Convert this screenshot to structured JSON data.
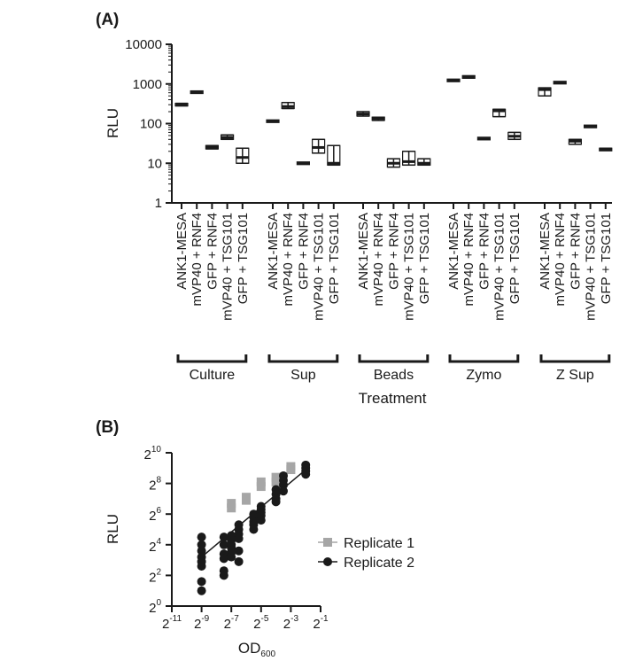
{
  "chart_data": [
    {
      "panel": "(A)",
      "type": "box",
      "ylabel": "RLU",
      "xlabel": "Treatment",
      "yscale": "log10",
      "ylim": [
        1,
        10000
      ],
      "yticks": [
        "1",
        "10",
        "100",
        "1000",
        "10000"
      ],
      "ytick_values": [
        1,
        10,
        100,
        1000,
        10000
      ],
      "categories": [
        "ANK1-MESA",
        "mVP40 + RNF4",
        "GFP + RNF4",
        "mVP40 + TSG101",
        "GFP + TSG101"
      ],
      "groups": [
        {
          "name": "Culture",
          "boxes": [
            {
              "med": 300,
              "lo": 280,
              "hi": 325
            },
            {
              "med": 620,
              "lo": 590,
              "hi": 650
            },
            {
              "med": 25,
              "lo": 23,
              "hi": 28
            },
            {
              "med": 45,
              "lo": 40,
              "hi": 52
            },
            {
              "med": 14,
              "lo": 10,
              "hi": 24
            }
          ]
        },
        {
          "name": "Sup",
          "boxes": [
            {
              "med": 115,
              "lo": 110,
              "hi": 120
            },
            {
              "med": 270,
              "lo": 240,
              "hi": 340
            },
            {
              "med": 10,
              "lo": 9.5,
              "hi": 10.5
            },
            {
              "med": 25,
              "lo": 18,
              "hi": 40
            },
            {
              "med": 10,
              "lo": 9,
              "hi": 28
            }
          ]
        },
        {
          "name": "Beads",
          "boxes": [
            {
              "med": 175,
              "lo": 155,
              "hi": 200
            },
            {
              "med": 135,
              "lo": 120,
              "hi": 145
            },
            {
              "med": 10,
              "lo": 8,
              "hi": 13
            },
            {
              "med": 11,
              "lo": 9,
              "hi": 20
            },
            {
              "med": 10,
              "lo": 9,
              "hi": 13
            }
          ]
        },
        {
          "name": "Zymo",
          "boxes": [
            {
              "med": 1230,
              "lo": 1200,
              "hi": 1260
            },
            {
              "med": 1500,
              "lo": 1400,
              "hi": 1600
            },
            {
              "med": 42,
              "lo": 41,
              "hi": 43
            },
            {
              "med": 210,
              "lo": 150,
              "hi": 230
            },
            {
              "med": 48,
              "lo": 40,
              "hi": 60
            }
          ]
        },
        {
          "name": "Z Sup",
          "boxes": [
            {
              "med": 720,
              "lo": 500,
              "hi": 800
            },
            {
              "med": 1080,
              "lo": 1060,
              "hi": 1100
            },
            {
              "med": 36,
              "lo": 30,
              "hi": 40
            },
            {
              "med": 85,
              "lo": 80,
              "hi": 88
            },
            {
              "med": 22,
              "lo": 21,
              "hi": 24
            }
          ]
        }
      ]
    },
    {
      "panel": "(B)",
      "type": "scatter",
      "ylabel": "RLU",
      "xlabel": "OD",
      "xlabel_subscript": "600",
      "xscale": "log2",
      "yscale": "log2",
      "xlim": [
        -11,
        -1
      ],
      "ylim": [
        0,
        10
      ],
      "xtick_base": "2",
      "ytick_base": "2",
      "xtick_exponents": [
        "-11",
        "-9",
        "-7",
        "-5",
        "-3",
        "-1"
      ],
      "xtick_values": [
        -11,
        -9,
        -7,
        -5,
        -3,
        -1
      ],
      "ytick_exponents": [
        "0",
        "2",
        "4",
        "6",
        "8",
        "10"
      ],
      "ytick_values": [
        0,
        2,
        4,
        6,
        8,
        10
      ],
      "legend_position": "right",
      "series": [
        {
          "name": "Replicate 1",
          "marker": "square",
          "color": "#a6a6a6",
          "x": [
            -7,
            -7,
            -6,
            -6,
            -5,
            -5,
            -4,
            -4,
            -3,
            -3
          ],
          "y": [
            6.7,
            6.4,
            7.1,
            6.9,
            8.1,
            7.8,
            8.4,
            8.1,
            9.1,
            8.9
          ]
        },
        {
          "name": "Replicate 2",
          "marker": "circle",
          "color": "#1a1a1a",
          "x": [
            -9,
            -9,
            -9,
            -9,
            -9,
            -9,
            -9,
            -9,
            -7.5,
            -7.5,
            -7.5,
            -7.5,
            -7.5,
            -7.5,
            -7,
            -7,
            -7,
            -7,
            -7,
            -7,
            -6.5,
            -6.5,
            -6.5,
            -6.5,
            -6.5,
            -6.5,
            -5.5,
            -5.5,
            -5.5,
            -5.5,
            -5.5,
            -5,
            -5,
            -5,
            -5,
            -5,
            -4,
            -4,
            -4,
            -4,
            -3.5,
            -3.5,
            -3.5,
            -3.5,
            -2,
            -2,
            -2,
            -2
          ],
          "y": [
            4.5,
            4.0,
            3.6,
            3.2,
            2.9,
            2.6,
            1.6,
            1.0,
            4.5,
            4.0,
            3.4,
            3.1,
            2.3,
            2.0,
            4.6,
            4.3,
            4.0,
            3.8,
            3.5,
            3.2,
            5.3,
            5.0,
            4.7,
            4.4,
            3.6,
            2.9,
            6.0,
            5.8,
            5.5,
            5.3,
            5.0,
            6.5,
            6.3,
            6.1,
            5.9,
            5.6,
            7.6,
            7.3,
            7.0,
            6.8,
            8.5,
            8.2,
            7.9,
            7.5,
            9.2,
            9.0,
            8.8,
            8.6
          ]
        }
      ],
      "fit_line": {
        "color": "#1a1a1a",
        "x": [
          -9,
          -2
        ],
        "y": [
          3.2,
          8.9
        ]
      }
    }
  ]
}
